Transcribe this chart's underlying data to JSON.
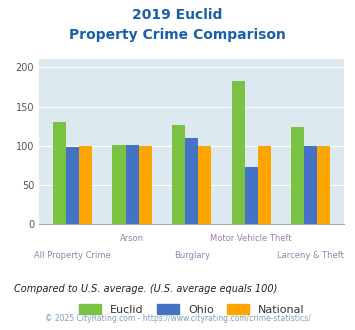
{
  "title_line1": "2019 Euclid",
  "title_line2": "Property Crime Comparison",
  "categories": [
    "All Property Crime",
    "Arson",
    "Burglary",
    "Motor Vehicle Theft",
    "Larceny & Theft"
  ],
  "euclid": [
    130,
    101,
    126,
    182,
    124
  ],
  "ohio": [
    98,
    101,
    110,
    73,
    100
  ],
  "national": [
    100,
    100,
    100,
    100,
    100
  ],
  "euclid_color": "#7bc142",
  "ohio_color": "#4472c4",
  "national_color": "#ffa500",
  "bg_color": "#dce9f0",
  "title_color": "#1a5fa8",
  "xlabel_color": "#9b7faa",
  "note_color": "#222222",
  "footer_color": "#7f9fba",
  "ylim": [
    0,
    210
  ],
  "yticks": [
    0,
    50,
    100,
    150,
    200
  ],
  "bar_width": 0.22,
  "note_text": "Compared to U.S. average. (U.S. average equals 100)",
  "footer_text": "© 2025 CityRating.com - https://www.cityrating.com/crime-statistics/"
}
